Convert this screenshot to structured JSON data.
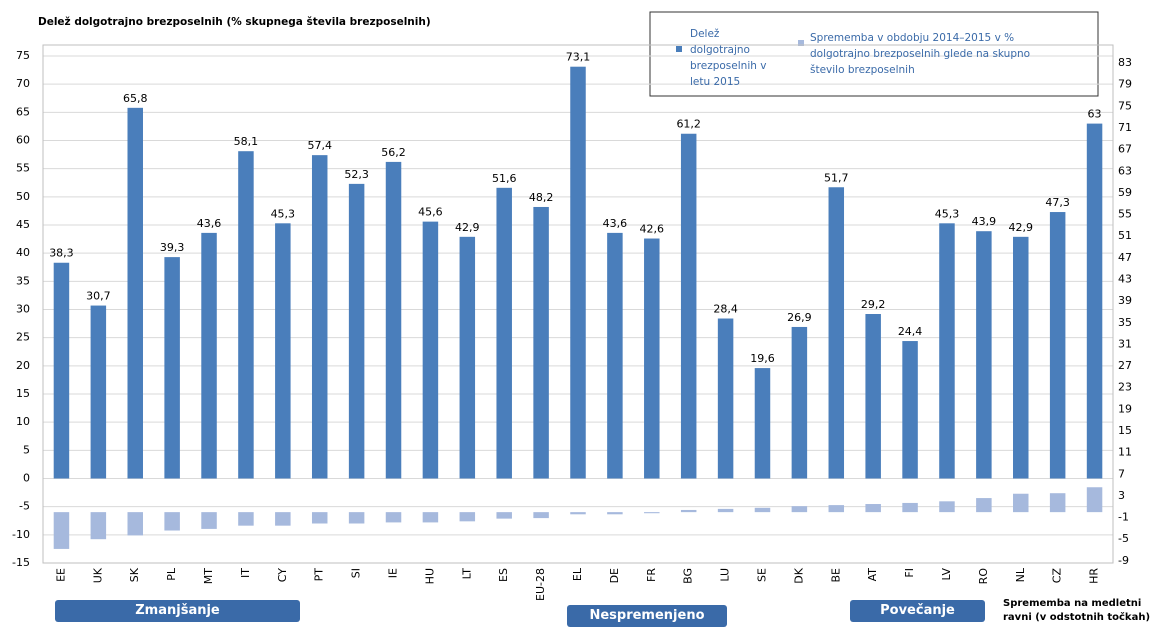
{
  "chart_data": {
    "type": "bar",
    "title": "Delež dolgotrajno brezposelnih (% skupnega števila brezposelnih)",
    "categories": [
      "EE",
      "UK",
      "SK",
      "PL",
      "MT",
      "IT",
      "CY",
      "PT",
      "SI",
      "IE",
      "HU",
      "LT",
      "ES",
      "EU-28",
      "EL",
      "DE",
      "FR",
      "BG",
      "LU",
      "SE",
      "DK",
      "BE",
      "AT",
      "FI",
      "LV",
      "RO",
      "NL",
      "CZ",
      "HR"
    ],
    "series": [
      {
        "name": "Delež dolgotrajno brezposelnih v letu 2015",
        "color": "#4a7ebb",
        "values": [
          38.3,
          30.7,
          65.8,
          39.3,
          43.6,
          58.1,
          45.3,
          57.4,
          52.3,
          56.2,
          45.6,
          42.9,
          51.6,
          48.2,
          73.1,
          43.6,
          42.6,
          61.2,
          28.4,
          19.6,
          26.9,
          51.7,
          29.2,
          24.4,
          45.3,
          43.9,
          42.9,
          47.3,
          63
        ],
        "value_labels": [
          "38,3",
          "30,7",
          "65,8",
          "39,3",
          "43,6",
          "58,1",
          "45,3",
          "57,4",
          "52,3",
          "56,2",
          "45,6",
          "42,9",
          "51,6",
          "48,2",
          "73,1",
          "43,6",
          "42,6",
          "61,2",
          "28,4",
          "19,6",
          "26,9",
          "51,7",
          "29,2",
          "24,4",
          "45,3",
          "43,9",
          "42,9",
          "47,3",
          "63"
        ]
      },
      {
        "name": "Sprememba v obdobju 2014–2015 v % dolgotrajno brezposelnih glede na skupno število brezposelnih",
        "color": "#a6b9dd",
        "axis": "y2",
        "values": [
          -6.8,
          -5.0,
          -4.3,
          -3.4,
          -3.1,
          -2.5,
          -2.5,
          -2.1,
          -2.1,
          -1.9,
          -1.9,
          -1.7,
          -1.2,
          -1.1,
          -0.4,
          -0.4,
          -0.2,
          0.4,
          0.6,
          0.8,
          1.1,
          1.3,
          1.5,
          1.7,
          2.0,
          2.6,
          3.4,
          3.5,
          4.6
        ]
      }
    ],
    "ylim": [
      -15,
      75
    ],
    "yticks": [
      -15,
      -10,
      -5,
      0,
      5,
      10,
      15,
      20,
      25,
      30,
      35,
      40,
      45,
      50,
      55,
      60,
      65,
      70,
      75
    ],
    "y2lim": [
      -9.4,
      84.3
    ],
    "y2ticks": [
      -9,
      -5,
      -1,
      3,
      7,
      11,
      15,
      19,
      23,
      27,
      31,
      35,
      39,
      43,
      47,
      51,
      55,
      59,
      63,
      67,
      71,
      75,
      79,
      83
    ],
    "y2_label": "Sprememba na medletni ravni (v odstotnih točkah)",
    "groups": [
      "Zmanjšanje",
      "Nespremenjeno",
      "Povečanje"
    ],
    "grid": true
  }
}
